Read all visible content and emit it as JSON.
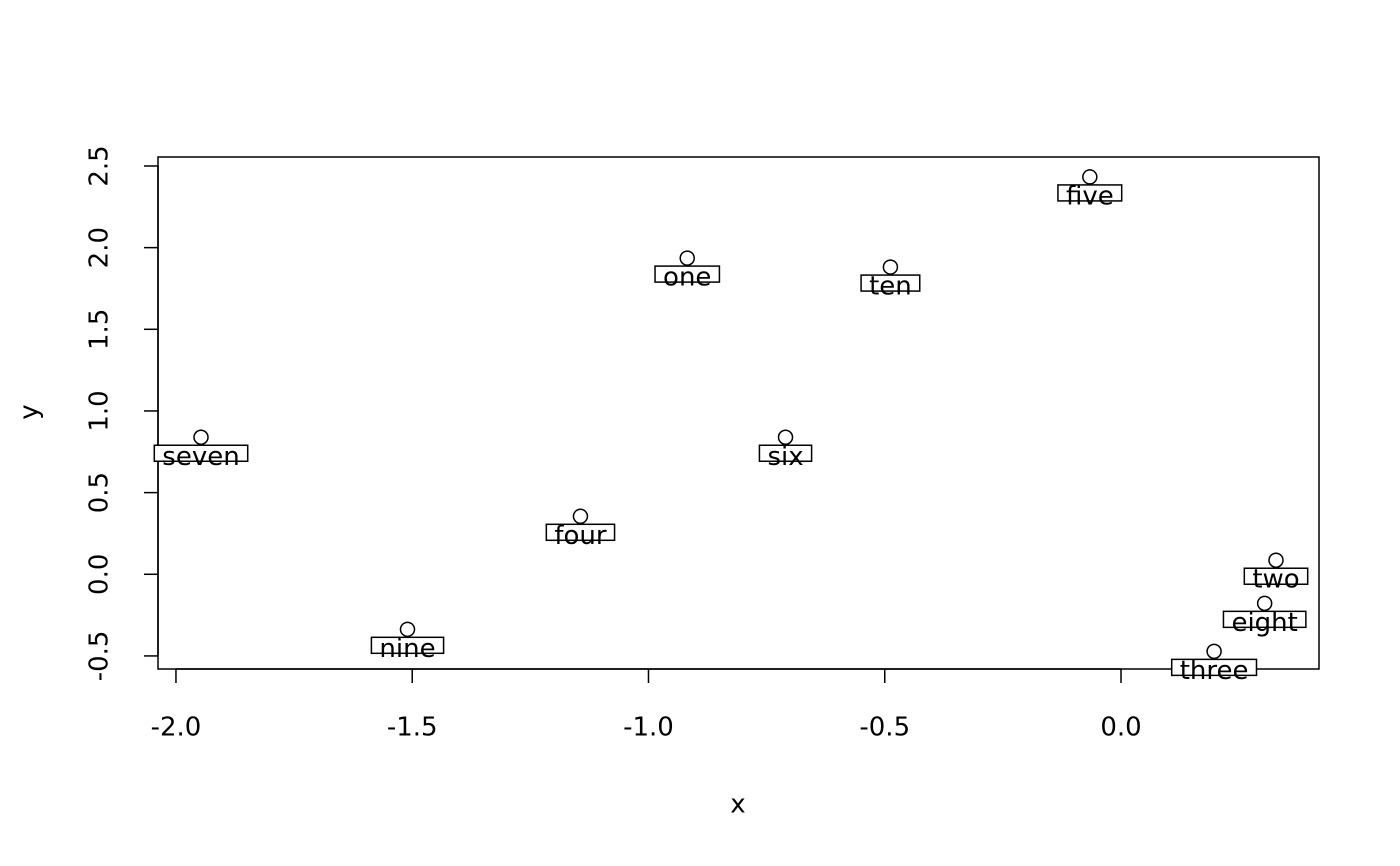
{
  "chart_data": {
    "type": "scatter",
    "xlabel": "x",
    "ylabel": "y",
    "x": [
      -0.918,
      0.328,
      0.197,
      -1.144,
      -0.066,
      -0.71,
      -1.947,
      0.304,
      -1.51,
      -0.488
    ],
    "y": [
      1.936,
      0.086,
      -0.472,
      0.355,
      2.433,
      0.839,
      0.839,
      -0.178,
      -0.337,
      1.881
    ],
    "labels": [
      "one",
      "two",
      "three",
      "four",
      "five",
      "six",
      "seven",
      "eight",
      "nine",
      "ten"
    ],
    "xlim": [
      -2.038,
      0.419
    ],
    "ylim": [
      -0.58,
      2.555
    ],
    "xticks": [
      {
        "value": -2.0,
        "label": "-2.0"
      },
      -1.5,
      {
        "value": -1.0,
        "label": "-1.0"
      },
      -0.5,
      {
        "value": 0.0,
        "label": "0.0"
      }
    ],
    "yticks": [
      -0.5,
      {
        "value": 0.0,
        "label": "0.0"
      },
      0.5,
      {
        "value": 1.0,
        "label": "1.0"
      },
      1.5,
      {
        "value": 2.0,
        "label": "2.0"
      },
      2.5
    ],
    "color": "#000000"
  }
}
